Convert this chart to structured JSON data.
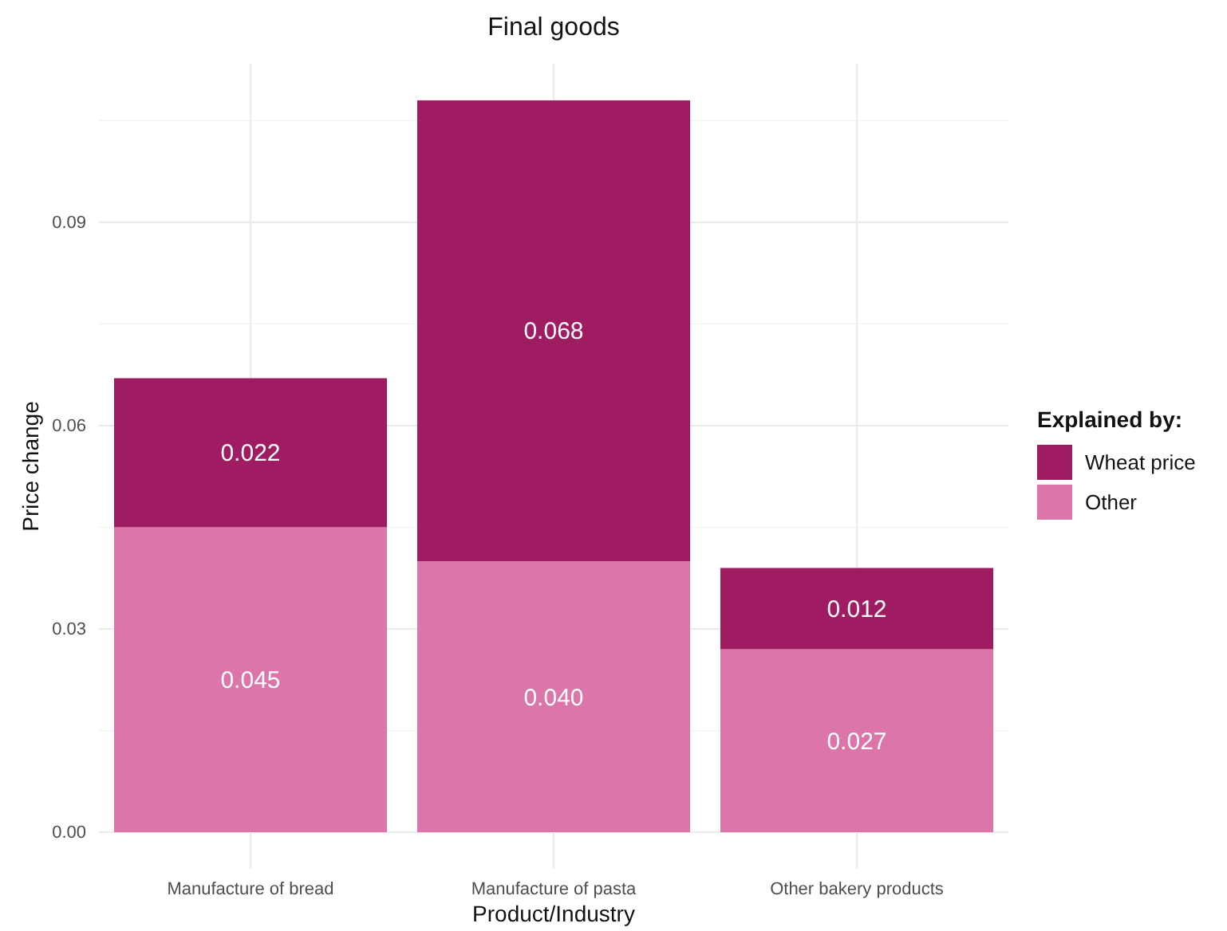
{
  "chart_data": {
    "type": "bar",
    "title": "Final goods",
    "xlabel": "Product/Industry",
    "ylabel": "Price change",
    "legend_title": "Explained by:",
    "categories": [
      "Manufacture of bread",
      "Manufacture of pasta",
      "Other bakery products"
    ],
    "stacked": true,
    "series": [
      {
        "name": "Other",
        "color": "#dc75aa",
        "values": [
          0.045,
          0.04,
          0.027
        ],
        "value_labels": [
          "0.045",
          "0.040",
          "0.027"
        ]
      },
      {
        "name": "Wheat price",
        "color": "#a01c62",
        "values": [
          0.022,
          0.068,
          0.012
        ],
        "value_labels": [
          "0.022",
          "0.068",
          "0.012"
        ]
      }
    ],
    "ylim": [
      -0.0054,
      0.1134
    ],
    "yticks": [
      {
        "value": 0,
        "label": "0.00"
      },
      {
        "value": 0.03,
        "label": "0.03"
      },
      {
        "value": 0.06,
        "label": "0.06"
      },
      {
        "value": 0.09,
        "label": "0.09"
      }
    ],
    "grid": true,
    "legend": "right"
  }
}
